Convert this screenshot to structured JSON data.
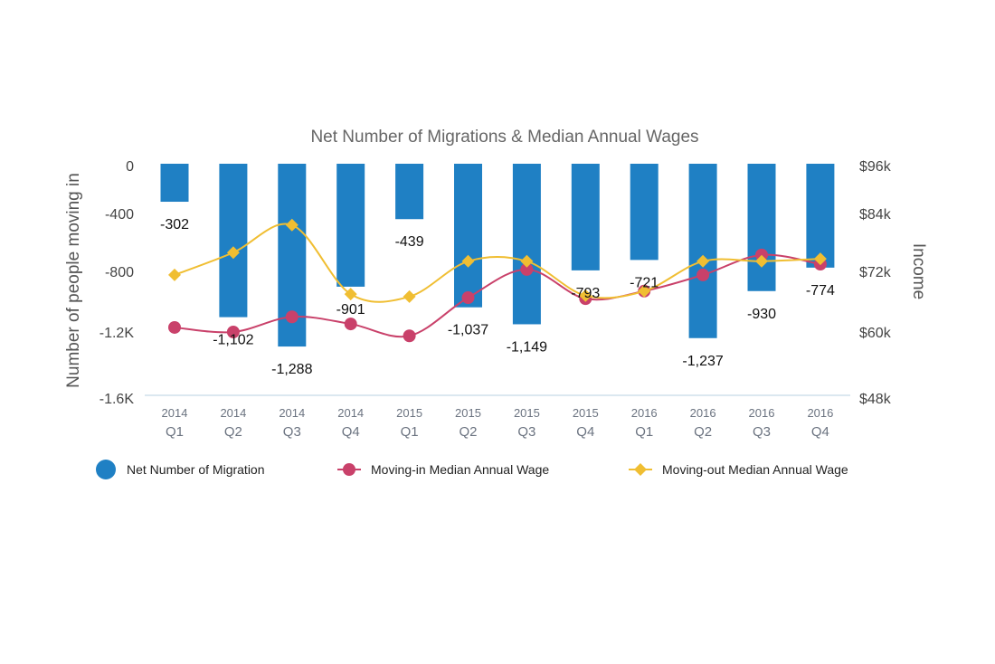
{
  "chart_data": {
    "type": "bar+line",
    "title": "Net Number of Migrations & Median Annual Wages",
    "categories": [
      [
        "2014",
        "Q1"
      ],
      [
        "2014",
        "Q2"
      ],
      [
        "2014",
        "Q3"
      ],
      [
        "2014",
        "Q4"
      ],
      [
        "2015",
        "Q1"
      ],
      [
        "2015",
        "Q2"
      ],
      [
        "2015",
        "Q3"
      ],
      [
        "2015",
        "Q4"
      ],
      [
        "2016",
        "Q1"
      ],
      [
        "2016",
        "Q2"
      ],
      [
        "2016",
        "Q3"
      ],
      [
        "2016",
        "Q4"
      ]
    ],
    "ylabel_left": "Number of people moving in",
    "ylabel_right": "Income",
    "left_axis": {
      "ylim": [
        -1600,
        0
      ],
      "ticks": [
        "0",
        "-400",
        "-800",
        "-1.2K",
        "-1.6K"
      ]
    },
    "right_axis": {
      "ylim": [
        48000,
        96000
      ],
      "ticks": [
        "$96k",
        "$84k",
        "$72k",
        "$60k",
        "$48k"
      ]
    },
    "grid": false,
    "legend_position": "bottom",
    "series": [
      {
        "name": "Net Number of Migration",
        "type": "bar",
        "axis": "left",
        "color": "#1f80c4",
        "values": [
          -302,
          -1102,
          -1288,
          -901,
          -439,
          -1037,
          -1149,
          -793,
          -721,
          -1237,
          -930,
          -774
        ],
        "labels": [
          "-302",
          "-1,102",
          "-1,288",
          "-901",
          "-439",
          "-1,037",
          "-1,149",
          "-793",
          "-721",
          "-1,237",
          "-930",
          "-774"
        ]
      },
      {
        "name": "Moving-in Median Annual Wage",
        "type": "line",
        "marker": "circle",
        "axis": "right",
        "color": "#c9416a",
        "values": [
          60900,
          60000,
          63000,
          61600,
          59300,
          66800,
          72400,
          66600,
          68100,
          71300,
          75400,
          73500
        ]
      },
      {
        "name": "Moving-out Median Annual Wage",
        "type": "line",
        "marker": "diamond",
        "axis": "right",
        "color": "#f0be32",
        "values": [
          71300,
          75900,
          81600,
          67500,
          67000,
          74100,
          74100,
          67200,
          68100,
          74100,
          74100,
          74600
        ]
      }
    ]
  }
}
